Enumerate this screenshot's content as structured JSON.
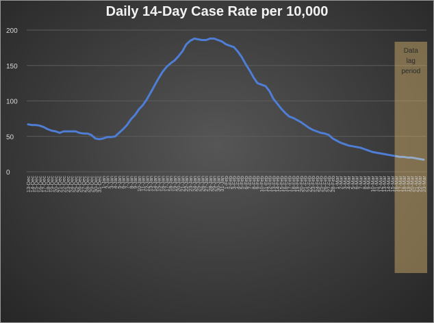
{
  "chart_data": {
    "type": "line",
    "title": "Daily 14-Day Case Rate per 10,000",
    "xlabel": "",
    "ylabel": "",
    "ylim": [
      0,
      200
    ],
    "yticks": [
      0,
      50,
      100,
      150,
      200
    ],
    "grid": true,
    "legend": "none",
    "annotation": "Data lag period",
    "lag_start_index": 93,
    "categories": [
      "13-Dec",
      "14-Dec",
      "15-Dec",
      "16-Dec",
      "17-Dec",
      "18-Dec",
      "19-Dec",
      "20-Dec",
      "21-Dec",
      "22-Dec",
      "23-Dec",
      "24-Dec",
      "25-Dec",
      "26-Dec",
      "27-Dec",
      "28-Dec",
      "29-Dec",
      "30-Dec",
      "31-Dec",
      "1-Jan",
      "2-Jan",
      "3-Jan",
      "4-Jan",
      "5-Jan",
      "6-Jan",
      "7-Jan",
      "8-Jan",
      "9-Jan",
      "10-Jan",
      "11-Jan",
      "12-Jan",
      "13-Jan",
      "14-Jan",
      "15-Jan",
      "16-Jan",
      "17-Jan",
      "18-Jan",
      "19-Jan",
      "20-Jan",
      "21-Jan",
      "22-Jan",
      "23-Jan",
      "24-Jan",
      "25-Jan",
      "26-Jan",
      "27-Jan",
      "28-Jan",
      "29-Jan",
      "30-Jan",
      "31-Jan",
      "1-Feb",
      "2-Feb",
      "3-Feb",
      "4-Feb",
      "5-Feb",
      "6-Feb",
      "7-Feb",
      "8-Feb",
      "9-Feb",
      "10-Feb",
      "11-Feb",
      "12-Feb",
      "13-Feb",
      "14-Feb",
      "15-Feb",
      "16-Feb",
      "17-Feb",
      "18-Feb",
      "19-Feb",
      "20-Feb",
      "21-Feb",
      "22-Feb",
      "23-Feb",
      "24-Feb",
      "25-Feb",
      "26-Feb",
      "27-Feb",
      "28-Feb",
      "1-Mar",
      "2-Mar",
      "3-Mar",
      "4-Mar",
      "5-Mar",
      "6-Mar",
      "7-Mar",
      "8-Mar",
      "9-Mar",
      "10-Mar",
      "11-Mar",
      "12-Mar",
      "13-Mar",
      "14-Mar",
      "15-Mar",
      "16-Mar",
      "17-Mar",
      "18-Mar",
      "19-Mar",
      "20-Mar",
      "21-Mar",
      "22-Mar",
      "23-Mar"
    ],
    "values": [
      67,
      66,
      66,
      65,
      63,
      60,
      58,
      57,
      55,
      57,
      57,
      57,
      57,
      55,
      54,
      54,
      52,
      47,
      46,
      47,
      49,
      49,
      50,
      55,
      60,
      66,
      74,
      80,
      88,
      94,
      102,
      112,
      122,
      132,
      141,
      148,
      153,
      157,
      163,
      170,
      180,
      185,
      188,
      187,
      186,
      186,
      188,
      188,
      186,
      184,
      180,
      178,
      176,
      170,
      162,
      152,
      143,
      133,
      125,
      123,
      121,
      114,
      103,
      96,
      89,
      83,
      78,
      76,
      73,
      70,
      66,
      62,
      59,
      57,
      55,
      54,
      52,
      47,
      44,
      41,
      39,
      37,
      36,
      35,
      34,
      32,
      30,
      28,
      27,
      26,
      25,
      24,
      23,
      22,
      21,
      21,
      20,
      20,
      19,
      18,
      17
    ],
    "colors": {
      "line": "#4f7ed6",
      "lag_line": "#93abc8",
      "lag_band": "#c9a968"
    }
  }
}
